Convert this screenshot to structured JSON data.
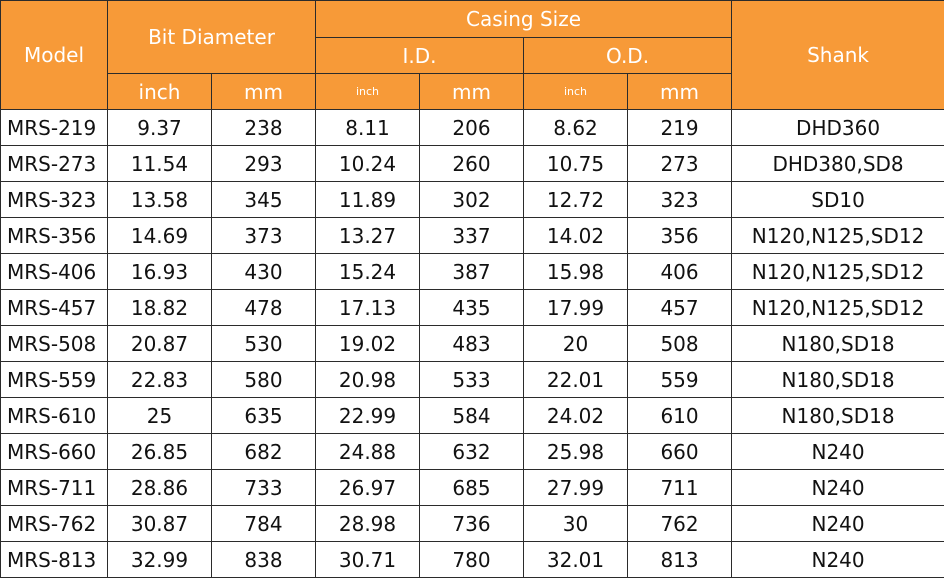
{
  "headers": {
    "model": "Model",
    "bit_diameter": "Bit Diameter",
    "casing_size": "Casing Size",
    "id": "I.D.",
    "od": "O.D.",
    "shank": "Shank",
    "bit_inch": "inch",
    "bit_mm": "mm",
    "id_inch": "inch",
    "id_mm": "mm",
    "od_inch": "inch",
    "od_mm": "mm"
  },
  "rows": [
    [
      "MRS-219",
      "9.37",
      "238",
      "8.11",
      "206",
      "8.62",
      "219",
      "DHD360"
    ],
    [
      "MRS-273",
      "11.54",
      "293",
      "10.24",
      "260",
      "10.75",
      "273",
      "DHD380,SD8"
    ],
    [
      "MRS-323",
      "13.58",
      "345",
      "11.89",
      "302",
      "12.72",
      "323",
      "SD10"
    ],
    [
      "MRS-356",
      "14.69",
      "373",
      "13.27",
      "337",
      "14.02",
      "356",
      "N120,N125,SD12"
    ],
    [
      "MRS-406",
      "16.93",
      "430",
      "15.24",
      "387",
      "15.98",
      "406",
      "N120,N125,SD12"
    ],
    [
      "MRS-457",
      "18.82",
      "478",
      "17.13",
      "435",
      "17.99",
      "457",
      "N120,N125,SD12"
    ],
    [
      "MRS-508",
      "20.87",
      "530",
      "19.02",
      "483",
      "20",
      "508",
      "N180,SD18"
    ],
    [
      "MRS-559",
      "22.83",
      "580",
      "20.98",
      "533",
      "22.01",
      "559",
      "N180,SD18"
    ],
    [
      "MRS-610",
      "25",
      "635",
      "22.99",
      "584",
      "24.02",
      "610",
      "N180,SD18"
    ],
    [
      "MRS-660",
      "26.85",
      "682",
      "24.88",
      "632",
      "25.98",
      "660",
      "N240"
    ],
    [
      "MRS-711",
      "28.86",
      "733",
      "26.97",
      "685",
      "27.99",
      "711",
      "N240"
    ],
    [
      "MRS-762",
      "30.87",
      "784",
      "28.98",
      "736",
      "30",
      "762",
      "N240"
    ],
    [
      "MRS-813",
      "32.99",
      "838",
      "30.71",
      "780",
      "32.01",
      "813",
      "N240"
    ]
  ],
  "colors": {
    "header_bg": "#f79a38",
    "header_text": "#ffffff",
    "border": "#2b2b2b"
  }
}
